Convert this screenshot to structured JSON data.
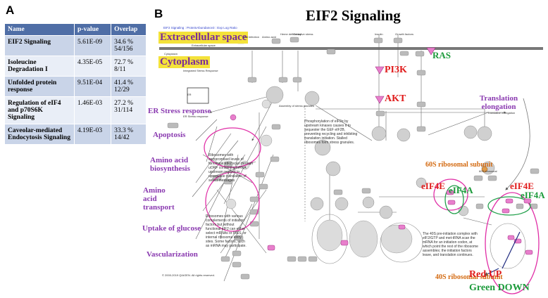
{
  "panel_a": {
    "letter": "A",
    "headers": [
      "Name",
      "p-value",
      "Overlap"
    ],
    "rows": [
      {
        "name": "EIF2 Signaling",
        "pvalue": "5.61E-09",
        "overlap_pct": "34.6 %",
        "overlap_ratio": "54/156"
      },
      {
        "name": "Isoleucine Degradation I",
        "pvalue": "4.35E-05",
        "overlap_pct": "72.7 %",
        "overlap_ratio": "8/11"
      },
      {
        "name": "Unfolded protein response",
        "pvalue": "9.51E-04",
        "overlap_pct": "41.4 %",
        "overlap_ratio": "12/29"
      },
      {
        "name": "Regulation of eIF4 and p70S6K Signaling",
        "pvalue": "1.46E-03",
        "overlap_pct": "27.2 %",
        "overlap_ratio": "31/114"
      },
      {
        "name": "Caveolar-mediated Endocytosis Signaling",
        "pvalue": "4.19E-03",
        "overlap_pct": "33.3 %",
        "overlap_ratio": "14/42"
      }
    ]
  },
  "panel_b": {
    "letter": "B",
    "title": "EIF2 Signaling",
    "header_small": "EIF2 Signaling : ProteinAbundance3 : Exp Log Ratio",
    "extracellular": "Extracellular space",
    "extracellular_small": "Extracellular space",
    "cytoplasm": "Cytoplasm",
    "cytoplasm_small": "Cytoplasm",
    "integrated_stress": "Integrated Stress Response",
    "labels": {
      "ras": "RAS",
      "pi3k": "PI3K",
      "akt": "AKT",
      "translation_elongation": "Translation elongation",
      "translation_elongation_small": "Translation elongation",
      "er_stress": "ER Stress response",
      "er_stress_small": "ER Stress response",
      "apoptosis": "Apoptosis",
      "amino_acid_biosynthesis": "Amino acid biosynthesis",
      "amino_acid_transport": "Amino acid transport",
      "uptake_glucose": "Uptake of glucose",
      "vascularization": "Vascularization",
      "ribosomal_60s": "60S ribosomal subunit",
      "ribosomal_60s_small": "60S ribosomal",
      "ribosomal_40s": "40S ribosomal subunit",
      "eif4e_left": "eIF4E",
      "eif4a_left": "eIF4A",
      "eif4e_right": "eIF4E",
      "eif4a_right": "eIF4A",
      "red_up": "Red UP",
      "green_down": "Green DOWN",
      "copyright": "© 2000-2019 QIAGEN. All rights reserved.",
      "er": "ER",
      "viral_infection": "Viral infection",
      "amino_acid": "Amino acid",
      "heme_deficiency": "Heme deficiency",
      "oxidative_stress": "Oxidative stress",
      "insulin": "Insulin",
      "growth_factors": "Growth factors",
      "pkr": "PKR",
      "gcn2": "GCN2",
      "hri": "HRI",
      "perk": "PERK",
      "eif2": "eIF2",
      "eif2b": "eIF2B",
      "assembly_stress": "Assembly of stress granules",
      "phospho_note": "Phosphorylation of eIF2α by upstream kinases causes it to sequester the GEF eIF2B, preventing recycling and inhibiting translation initiation. Stalled ribosomes form stress granules.",
      "ribosome_note_1": "Ribosomes with compromised levels of functional eIF2 scan through uORF containing mRNA upstream regions to upregulate translation of select messages",
      "ribosome_note_2": "Ribosomes with various complements of initiation factors but without functional eIF2 can either select mRNAs or IRES, or internal ribosome entry sites. Some factors, such as mRNA may participate.",
      "preinitiation_note": "The 40S pre-initiation complex with eIF2/GTP and met-tRNA scan the mRNA for an initiation codon, at which point the rest of the ribosome assembles; the initiation factors leave, and translation continues.",
      "met_trna": "Met-tRNA",
      "gtp": "GTP",
      "gdp": "GDP",
      "atf4": "ATF4",
      "atf3": "ATF3",
      "atf5": "ATF5",
      "chop": "CHOP",
      "gadd34": "GADD34",
      "mrna": "mRNA",
      "pi3k_small": "PI3K",
      "akt_small": "AKT",
      "pdk1": "PDK1",
      "mek": "MEK",
      "erk": "ERK",
      "mnk": "MNK",
      "grb2": "GRB2",
      "sos": "SOS"
    }
  }
}
